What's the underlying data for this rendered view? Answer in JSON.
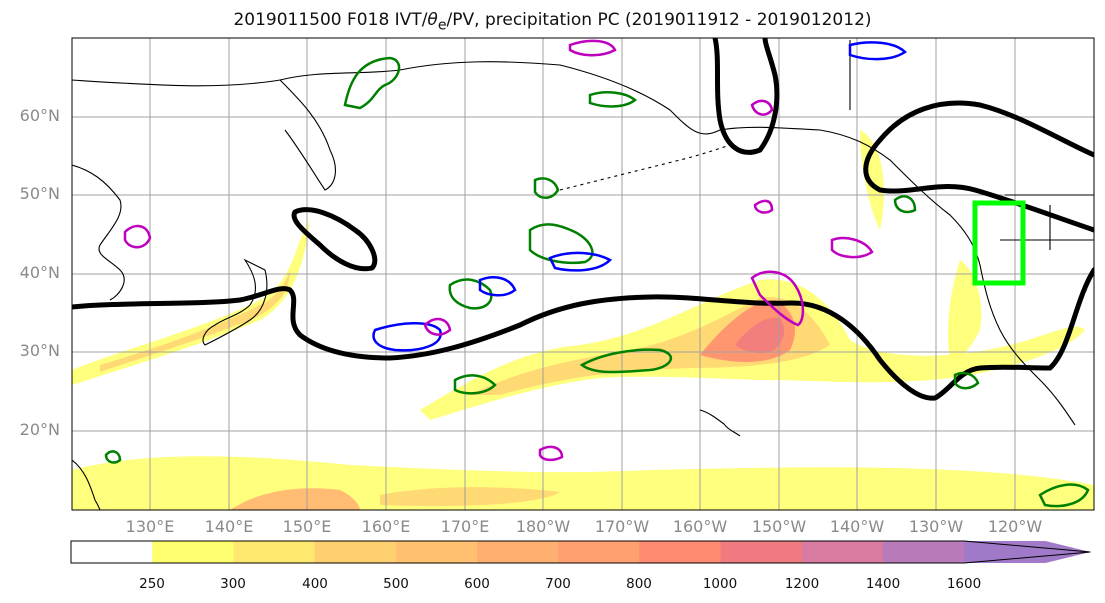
{
  "title": {
    "prefix": "2019011500 F018 IVT/",
    "theta": "θ",
    "subscript": "e",
    "suffix": "/PV, precipitation PC (2019011912 - 2019012012)"
  },
  "map": {
    "lat_labels": [
      "60°N",
      "50°N",
      "40°N",
      "30°N",
      "20°N"
    ],
    "lon_labels": [
      "130°E",
      "140°E",
      "150°E",
      "160°E",
      "170°E",
      "180°W",
      "170°W",
      "160°W",
      "150°W",
      "140°W",
      "130°W",
      "120°W"
    ],
    "colors": {
      "contour_black": "#000000",
      "contour_green": "#008000",
      "contour_blue": "#0000ff",
      "contour_magenta": "#bf00bf",
      "highlight_box": "#00ff00",
      "coastline": "#000000",
      "grid": "#a0a0a0"
    }
  },
  "colorbar": {
    "ticks": [
      "250",
      "300",
      "400",
      "500",
      "600",
      "700",
      "800",
      "1000",
      "1200",
      "1400",
      "1600"
    ],
    "colors": [
      "#ffffff",
      "#ffff70",
      "#ffe870",
      "#ffd070",
      "#ffc070",
      "#ffb070",
      "#ffa070",
      "#ff8a70",
      "#f07a80",
      "#d97aa0",
      "#b87ab8",
      "#a07ac8"
    ]
  }
}
